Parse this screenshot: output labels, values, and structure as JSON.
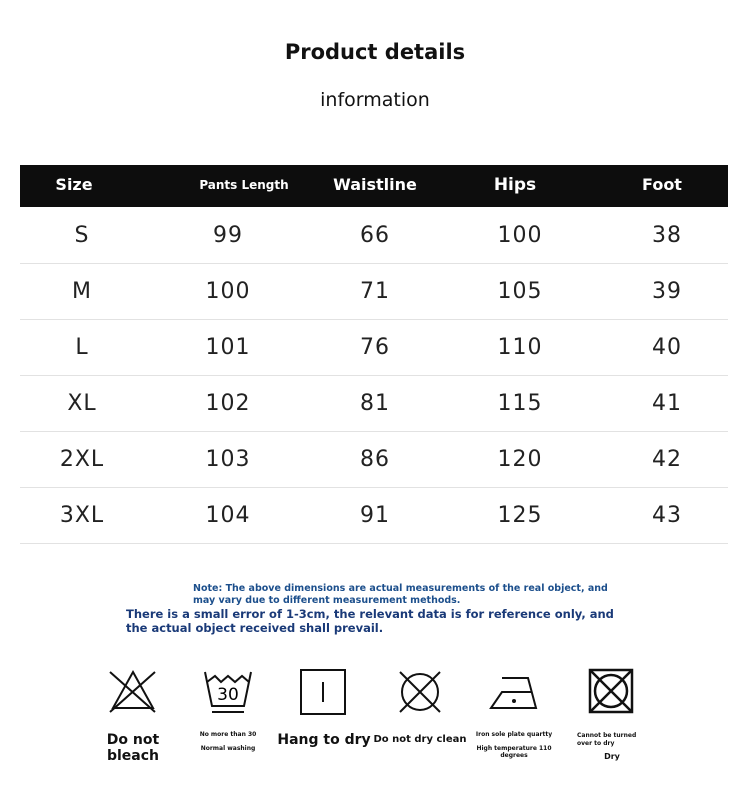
{
  "title": "Product details",
  "subtitle": "information",
  "table": {
    "headers": [
      "Size",
      "Pants Length",
      "Waistline",
      "Hips",
      "Foot"
    ],
    "rows": [
      [
        "S",
        "99",
        "66",
        "100",
        "38"
      ],
      [
        "M",
        "100",
        "71",
        "105",
        "39"
      ],
      [
        "L",
        "101",
        "76",
        "110",
        "40"
      ],
      [
        "XL",
        "102",
        "81",
        "115",
        "41"
      ],
      [
        "2XL",
        "103",
        "86",
        "120",
        "42"
      ],
      [
        "3XL",
        "104",
        "91",
        "125",
        "43"
      ]
    ]
  },
  "note": {
    "line1": "Note: The above dimensions are actual measurements of the real object, and",
    "line2": "may vary due to different measurement methods.",
    "line3": "There is a small error of 1-3cm, the relevant data is for reference only, and",
    "line4": "the actual object received shall prevail."
  },
  "care": [
    {
      "icon": "no-bleach-icon",
      "label": "Do not bleach"
    },
    {
      "icon": "wash-30-icon",
      "wash_temp": "30",
      "label": "No more than 30",
      "label2": "Normal washing"
    },
    {
      "icon": "hang-dry-icon",
      "label": "Hang to dry"
    },
    {
      "icon": "no-dry-clean-icon",
      "label": "Do not dry clean"
    },
    {
      "icon": "iron-icon",
      "label": "Iron sole plate quartty",
      "label2": "High temperature 110 degrees"
    },
    {
      "icon": "no-tumble-dry-icon",
      "label": "Cannot be turned over to dry",
      "label2": "Dry"
    }
  ]
}
